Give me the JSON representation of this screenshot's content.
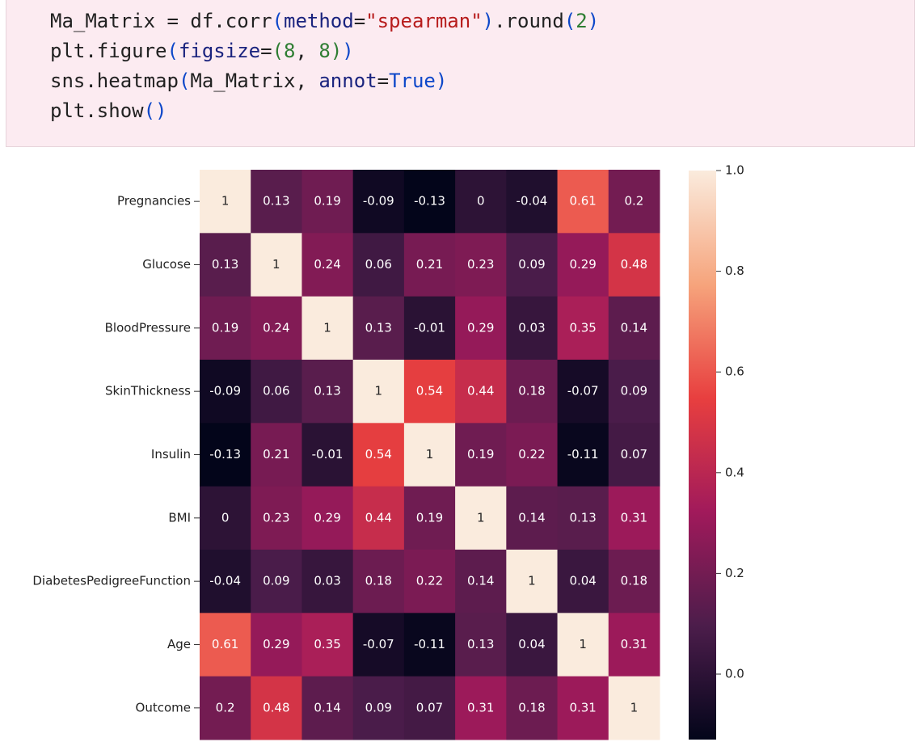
{
  "code": {
    "lines": [
      [
        {
          "text": "Ma_Matrix = df.corr",
          "color": "#212121"
        },
        {
          "text": "(",
          "color": "#0d47c9"
        },
        {
          "text": "method",
          "color": "#1a237e"
        },
        {
          "text": "=",
          "color": "#212121"
        },
        {
          "text": "\"spearman\"",
          "color": "#b71c1c"
        },
        {
          "text": ")",
          "color": "#0d47c9"
        },
        {
          "text": ".round",
          "color": "#212121"
        },
        {
          "text": "(",
          "color": "#0d47c9"
        },
        {
          "text": "2",
          "color": "#2e7d32"
        },
        {
          "text": ")",
          "color": "#0d47c9"
        }
      ],
      [
        {
          "text": "plt.figure",
          "color": "#212121"
        },
        {
          "text": "(",
          "color": "#0d47c9"
        },
        {
          "text": "figsize",
          "color": "#1a237e"
        },
        {
          "text": "=",
          "color": "#212121"
        },
        {
          "text": "(",
          "color": "#2e7d32"
        },
        {
          "text": "8",
          "color": "#2e7d32"
        },
        {
          "text": ", ",
          "color": "#212121"
        },
        {
          "text": "8",
          "color": "#2e7d32"
        },
        {
          "text": ")",
          "color": "#2e7d32"
        },
        {
          "text": ")",
          "color": "#0d47c9"
        }
      ],
      [
        {
          "text": "sns.heatmap",
          "color": "#212121"
        },
        {
          "text": "(",
          "color": "#0d47c9"
        },
        {
          "text": "Ma_Matrix, ",
          "color": "#212121"
        },
        {
          "text": "annot",
          "color": "#1a237e"
        },
        {
          "text": "=",
          "color": "#212121"
        },
        {
          "text": "True",
          "color": "#0d47c9"
        },
        {
          "text": ")",
          "color": "#0d47c9"
        }
      ],
      [
        {
          "text": "plt.show",
          "color": "#212121"
        },
        {
          "text": "()",
          "color": "#0d47c9"
        }
      ]
    ]
  },
  "chart_data": {
    "type": "heatmap",
    "categories": [
      "Pregnancies",
      "Glucose",
      "BloodPressure",
      "SkinThickness",
      "Insulin",
      "BMI",
      "DiabetesPedigreeFunction",
      "Age",
      "Outcome"
    ],
    "values": [
      [
        1,
        0.13,
        0.19,
        -0.09,
        -0.13,
        0,
        -0.04,
        0.61,
        0.2
      ],
      [
        0.13,
        1,
        0.24,
        0.06,
        0.21,
        0.23,
        0.09,
        0.29,
        0.48
      ],
      [
        0.19,
        0.24,
        1,
        0.13,
        -0.01,
        0.29,
        0.03,
        0.35,
        0.14
      ],
      [
        -0.09,
        0.06,
        0.13,
        1,
        0.54,
        0.44,
        0.18,
        -0.07,
        0.09
      ],
      [
        -0.13,
        0.21,
        -0.01,
        0.54,
        1,
        0.19,
        0.22,
        -0.11,
        0.07
      ],
      [
        0,
        0.23,
        0.29,
        0.44,
        0.19,
        1,
        0.14,
        0.13,
        0.31
      ],
      [
        -0.04,
        0.09,
        0.03,
        0.18,
        0.22,
        0.14,
        1,
        0.04,
        0.18
      ],
      [
        0.61,
        0.29,
        0.35,
        -0.07,
        -0.11,
        0.13,
        0.04,
        1,
        0.31
      ],
      [
        0.2,
        0.48,
        0.14,
        0.09,
        0.07,
        0.31,
        0.18,
        0.31,
        1
      ]
    ],
    "clim": [
      -0.13,
      1
    ],
    "cticks": [
      {
        "value": 0,
        "label": "0.0"
      },
      0.2,
      0.4,
      0.6,
      0.8,
      {
        "value": 1,
        "label": "1.0"
      }
    ],
    "colormap": [
      "#03051A",
      "#4C1D4B",
      "#A11A5B",
      "#E83F3F",
      "#F6A47C",
      "#FAEBDD"
    ]
  }
}
